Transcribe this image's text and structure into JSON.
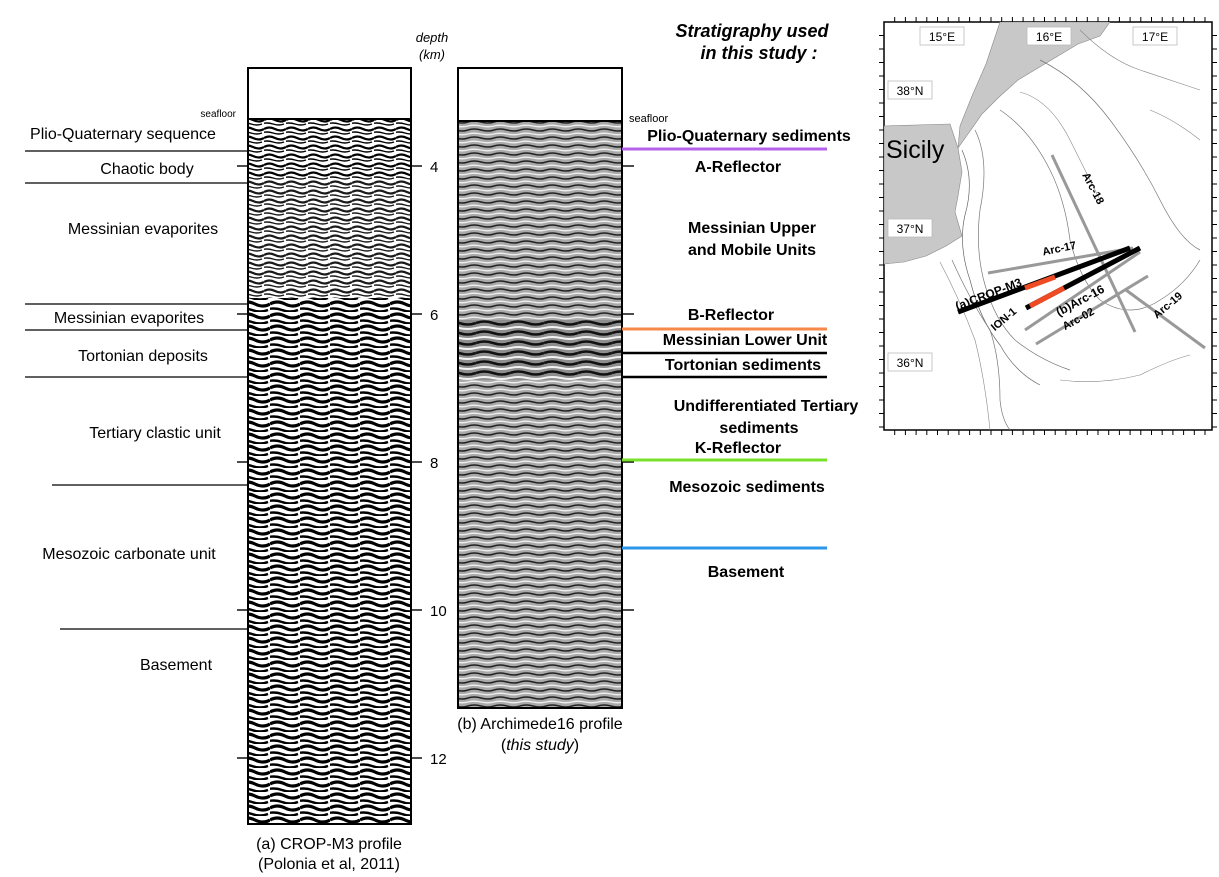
{
  "depth_axis": {
    "title_line1": "depth",
    "title_line2": "(km)",
    "ticks": [
      {
        "value": 4,
        "label": "4"
      },
      {
        "value": 6,
        "label": "6"
      },
      {
        "value": 8,
        "label": "8"
      },
      {
        "value": 10,
        "label": "10"
      },
      {
        "value": 12,
        "label": "12"
      }
    ]
  },
  "profile_a": {
    "seafloor_label": "seafloor",
    "caption_line1": "(a) CROP-M3 profile",
    "caption_line2": "(Polonia et al, 2011)",
    "units": [
      {
        "label": "Plio-Quaternary sequence"
      },
      {
        "label": "Chaotic body"
      },
      {
        "label": "Messinian evaporites"
      },
      {
        "label": "Messinian evaporites"
      },
      {
        "label": "Tortonian deposits"
      },
      {
        "label": "Tertiary clastic unit"
      },
      {
        "label": "Mesozoic carbonate unit"
      },
      {
        "label": "Basement"
      }
    ]
  },
  "profile_b": {
    "seafloor_label": "seafloor",
    "caption_line1": "(b) Archimede16 profile",
    "caption_line2_open": "(",
    "caption_line2_italic": "this study",
    "caption_line2_close": ")"
  },
  "stratigraphy": {
    "title_line1": "Stratigraphy used",
    "title_line2": "in this study :",
    "labels": [
      {
        "text": "Plio-Quaternary sediments",
        "color": "#000000"
      },
      {
        "text": "A-Reflector",
        "color": "#b561e8"
      },
      {
        "text": "Messinian Upper",
        "color": "#000000"
      },
      {
        "text": "and Mobile Units",
        "color": "#000000"
      },
      {
        "text": "B-Reflector",
        "color": "#f4894a"
      },
      {
        "text": "Messinian Lower Unit",
        "color": "#000000"
      },
      {
        "text": "Tortonian sediments",
        "color": "#000000"
      },
      {
        "text": "Undifferentiated Tertiary",
        "color": "#000000"
      },
      {
        "text": "sediments",
        "color": "#000000"
      },
      {
        "text": "K-Reflector",
        "color": "#7ae12a"
      },
      {
        "text": "Mesozoic sediments",
        "color": "#000000"
      },
      {
        "text": "Basement",
        "color": "#000000"
      }
    ],
    "colors": {
      "a_reflector": "#b561e8",
      "b_reflector": "#f4894a",
      "k_reflector": "#7ae12a",
      "basement": "#2b97e8"
    }
  },
  "map": {
    "lon_labels": [
      "15°E",
      "16°E",
      "17°E"
    ],
    "lat_labels": [
      "38°N",
      "37°N",
      "36°N"
    ],
    "land_label": "Sicily",
    "lines": {
      "arc18": "Arc-18",
      "arc17": "Arc-17",
      "cropm3": "(a)CROP-M3",
      "arc16": "(b)Arc-16",
      "ion1": "ION-1",
      "arc02": "Arc-02",
      "arc19": "Arc-19"
    },
    "colors": {
      "land": "#c8c8c8",
      "survey_line": "#999999",
      "profile_line": "#000000",
      "highlight": "#ee4a24"
    }
  }
}
